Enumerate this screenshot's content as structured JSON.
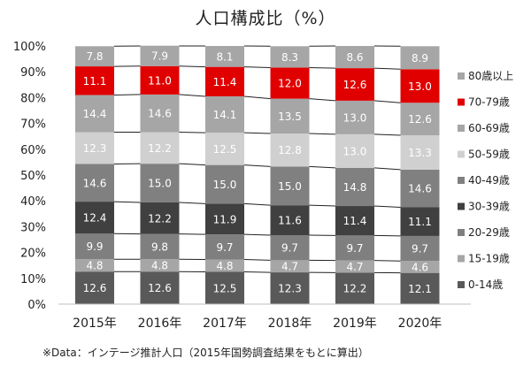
{
  "chart_data": {
    "type": "bar",
    "stacked": true,
    "title": "人口構成比（%）",
    "footnote": "※Data：インテージ推計人口（2015年国勢調査結果をもとに算出）",
    "categories": [
      "2015年",
      "2016年",
      "2017年",
      "2018年",
      "2019年",
      "2020年"
    ],
    "ylim": [
      0,
      100
    ],
    "y_ticks": [
      "0%",
      "10%",
      "20%",
      "30%",
      "40%",
      "50%",
      "60%",
      "70%",
      "80%",
      "90%",
      "100%"
    ],
    "grid": false,
    "legend_position": "right",
    "series": [
      {
        "name": "0-14歳",
        "color": "#595959",
        "values": [
          12.6,
          12.6,
          12.5,
          12.3,
          12.2,
          12.1
        ]
      },
      {
        "name": "15-19歳",
        "color": "#a6a6a6",
        "values": [
          4.8,
          4.8,
          4.8,
          4.7,
          4.7,
          4.6
        ]
      },
      {
        "name": "20-29歳",
        "color": "#7f7f7f",
        "values": [
          9.9,
          9.8,
          9.7,
          9.7,
          9.7,
          9.7
        ]
      },
      {
        "name": "30-39歳",
        "color": "#404040",
        "values": [
          12.4,
          12.2,
          11.9,
          11.6,
          11.4,
          11.1
        ]
      },
      {
        "name": "40-49歳",
        "color": "#808080",
        "values": [
          14.6,
          15.0,
          15.0,
          15.0,
          14.8,
          14.6
        ]
      },
      {
        "name": "50-59歳",
        "color": "#d0d0d0",
        "values": [
          12.3,
          12.2,
          12.5,
          12.8,
          13.0,
          13.3
        ]
      },
      {
        "name": "60-69歳",
        "color": "#a6a6a6",
        "values": [
          14.4,
          14.6,
          14.1,
          13.5,
          13.0,
          12.6
        ]
      },
      {
        "name": "70-79歳",
        "color": "#e00000",
        "values": [
          11.1,
          11.0,
          11.4,
          12.0,
          12.6,
          13.0
        ]
      },
      {
        "name": "80歳以上",
        "color": "#a6a6a6",
        "values": [
          7.8,
          7.9,
          8.1,
          8.3,
          8.6,
          8.9
        ]
      }
    ]
  }
}
